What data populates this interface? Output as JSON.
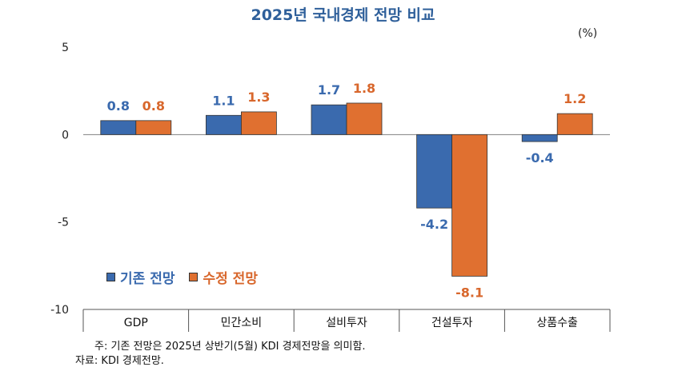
{
  "chart_data": {
    "type": "bar",
    "title": "2025년 국내경제 전망 비교",
    "unit": "(%)",
    "categories": [
      "GDP",
      "민간소비",
      "설비투자",
      "건설투자",
      "상품수출"
    ],
    "series": [
      {
        "name": "기존 전망",
        "values": [
          0.8,
          1.1,
          1.7,
          -4.2,
          -0.4
        ],
        "labels": [
          "0.8",
          "1.1",
          "1.7",
          "-4.2",
          "-0.4"
        ],
        "color": "#3A6AAE",
        "label_color": "#3A6AAE"
      },
      {
        "name": "수정 전망",
        "values": [
          0.8,
          1.3,
          1.8,
          -8.1,
          1.2
        ],
        "labels": [
          "0.8",
          "1.3",
          "1.8",
          "-8.1",
          "1.2"
        ],
        "color": "#E07030",
        "label_color": "#D8672C"
      }
    ],
    "ylim": [
      -10,
      5
    ],
    "yticks": [
      5,
      0,
      -5,
      -10
    ],
    "ytick_labels": [
      "5",
      "0",
      "-5",
      "-10"
    ],
    "legend_position": "lower-left"
  },
  "legend": {
    "item1": "기존 전망",
    "item2": "수정 전망"
  },
  "notes": {
    "line1": "주: 기존 전망은 2025년 상반기(5월) KDI 경제전망을 의미함.",
    "line2": "자료: KDI 경제전망."
  },
  "colors": {
    "title": "#2E5F9A",
    "series1": "#3A6AAE",
    "series2": "#E07030",
    "axis": "#333333"
  }
}
